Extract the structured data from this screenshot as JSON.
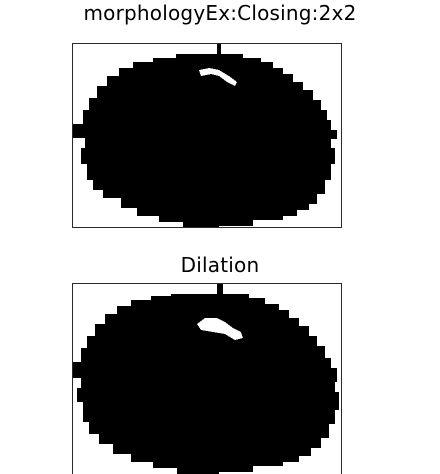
{
  "panels": [
    {
      "title": "morphologyEx:Closing:2x2"
    },
    {
      "title": "Dilation"
    }
  ],
  "colors": {
    "background": "#ffffff",
    "foreground": "#000000",
    "frame": "#2a2a2a"
  }
}
